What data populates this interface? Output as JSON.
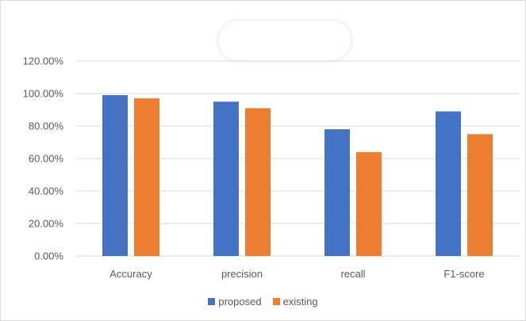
{
  "chart_data": {
    "type": "bar",
    "title": "",
    "xlabel": "",
    "ylabel": "",
    "categories": [
      "Accuracy",
      "precision",
      "recall",
      "F1-score"
    ],
    "series": [
      {
        "name": "proposed",
        "color": "#4472c4",
        "values": [
          99,
          95,
          78,
          89
        ]
      },
      {
        "name": "existing",
        "color": "#ed7d31",
        "values": [
          97,
          91,
          64,
          75
        ]
      }
    ],
    "yticks": [
      "0.00%",
      "20.00%",
      "40.00%",
      "60.00%",
      "80.00%",
      "100.00%",
      "120.00%"
    ],
    "ylim": [
      0,
      120
    ],
    "grid": true,
    "legend_position": "bottom",
    "gridline_color": "#d9d9d9"
  }
}
